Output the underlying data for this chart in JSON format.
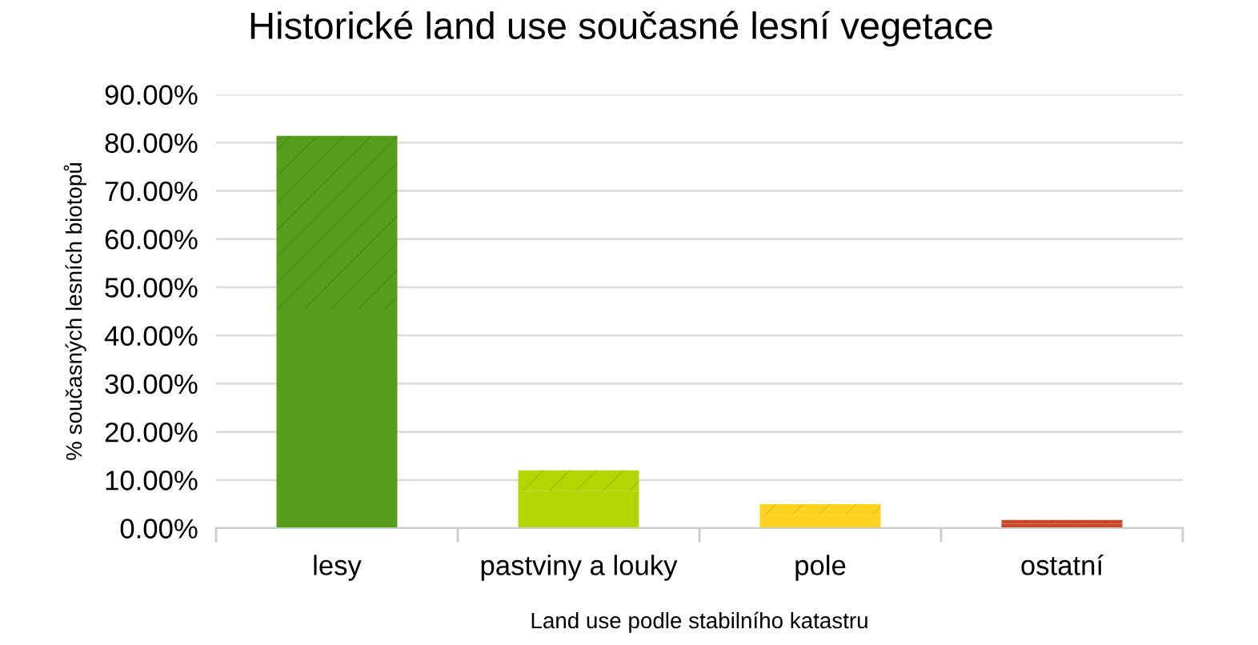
{
  "chart_data": {
    "type": "bar",
    "title": "Historické land use současné lesní vegetace",
    "xlabel": "Land use podle stabilního katastru",
    "ylabel": "% současných lesních biotopů",
    "categories": [
      "lesy",
      "pastviny a louky",
      "pole",
      "ostatní"
    ],
    "stacked": true,
    "series": [
      {
        "colors": [
          "#579d1c",
          "#b3d600",
          "#ffd320",
          "#c9472a"
        ],
        "values": [
          45.5,
          7.7,
          2.8,
          0.9
        ]
      },
      {
        "colors": [
          "#579d1c",
          "#b3d600",
          "#ffd320",
          "#c9472a"
        ],
        "values": [
          35.9,
          4.3,
          2.2,
          0.8
        ]
      }
    ],
    "ylim": [
      0,
      90
    ],
    "yticks": [
      {
        "value": 0,
        "label": "0.00%"
      },
      {
        "value": 10,
        "label": "10.00%"
      },
      {
        "value": 20,
        "label": "20.00%"
      },
      {
        "value": 30,
        "label": "30.00%"
      },
      {
        "value": 40,
        "label": "40.00%"
      },
      {
        "value": 50,
        "label": "50.00%"
      },
      {
        "value": 60,
        "label": "60.00%"
      },
      {
        "value": 70,
        "label": "70.00%"
      },
      {
        "value": 80,
        "label": "80.00%"
      },
      {
        "value": 90,
        "label": "90.00%"
      }
    ],
    "grid": "y",
    "legend": false
  }
}
